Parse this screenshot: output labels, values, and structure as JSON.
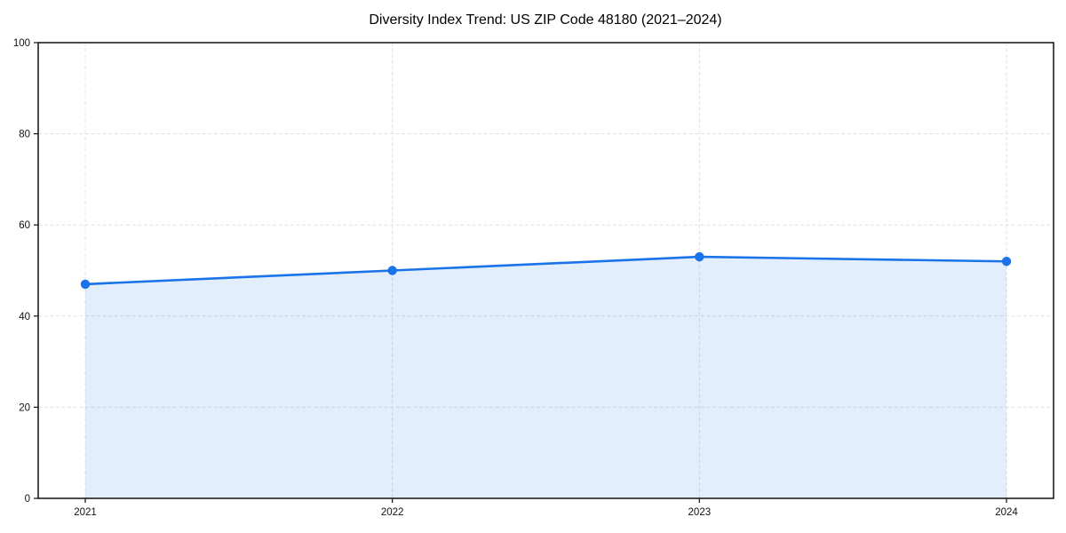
{
  "chart_data": {
    "type": "line",
    "title": "Diversity Index Trend: US ZIP Code 48180 (2021–2024)",
    "categories": [
      "2021",
      "2022",
      "2023",
      "2024"
    ],
    "series": [
      {
        "name": "Diversity Index",
        "values": [
          47,
          50,
          53,
          52
        ]
      }
    ],
    "xlabel": "",
    "ylabel": "",
    "ylim": [
      0,
      100
    ],
    "yticks": [
      0,
      20,
      40,
      60,
      80,
      100
    ],
    "grid": true,
    "grid_style": "dashed",
    "legend": "none",
    "area_fill": true,
    "marker": "circle",
    "colors": {
      "line": "#1a73e8",
      "marker": "#1a73e8",
      "area_rgb": "26,115,232",
      "area_opacity": 0.12,
      "grid": "#e0e0e0",
      "spine": "#111111",
      "tick_label": "#111111",
      "title": "#000000",
      "background": "#ffffff"
    }
  }
}
